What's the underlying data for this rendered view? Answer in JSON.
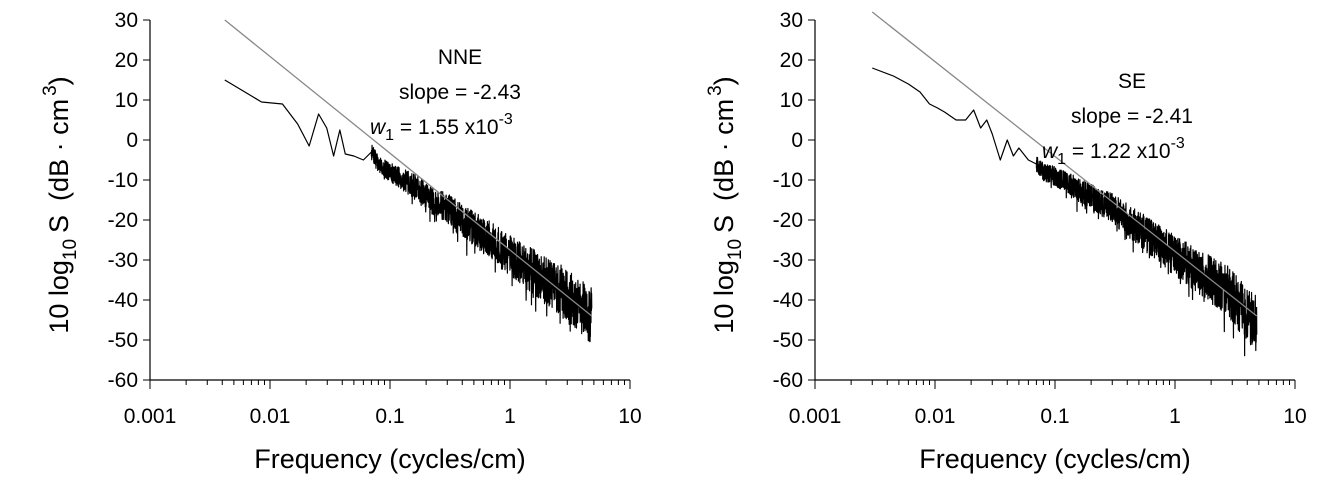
{
  "chart_data": [
    {
      "type": "line",
      "panel": "left",
      "xlabel": "Frequency (cycles/cm)",
      "ylabel_main": "10 log",
      "ylabel_sub": "10",
      "ylabel_hat": "S",
      "ylabel_unit": "(dB · cm",
      "ylabel_unit_sup": "3",
      "ylabel_close": ")",
      "xscale": "log",
      "xlim": [
        0.001,
        10
      ],
      "ylim": [
        -60,
        30
      ],
      "x_ticks": [
        "0.001",
        "0.01",
        "0.1",
        "1",
        "10"
      ],
      "y_ticks": [
        "30",
        "20",
        "10",
        "0",
        "-10",
        "-20",
        "-30",
        "-40",
        "-50",
        "-60"
      ],
      "annotation": {
        "site": "NNE",
        "slope_text": "slope = -2.43",
        "w_symbol": "w",
        "w_sub": "1",
        "w_value": " = 1.55 x10",
        "w_exp": "-3"
      },
      "fit_line": {
        "x": [
          0.0042,
          4.8
        ],
        "y": [
          30,
          -44
        ]
      },
      "spectrum": {
        "x": [
          0.0042,
          0.0085,
          0.0127,
          0.017,
          0.0212,
          0.0254,
          0.0297,
          0.0339,
          0.0382,
          0.0424,
          0.05,
          0.06,
          0.07,
          0.08,
          0.1,
          0.13,
          0.17,
          0.22,
          0.3,
          0.4,
          0.55,
          0.75,
          1.0,
          1.4,
          2.0,
          2.8,
          3.6,
          4.8
        ],
        "y": [
          15,
          9.5,
          9,
          4,
          -1.5,
          6.5,
          3,
          -4,
          2.5,
          -3.5,
          -4,
          -5,
          -3,
          -6,
          -8,
          -10,
          -12,
          -15,
          -17,
          -20,
          -23,
          -26,
          -29,
          -32,
          -35,
          -38,
          -41,
          -44
        ]
      }
    },
    {
      "type": "line",
      "panel": "right",
      "xlabel": "Frequency (cycles/cm)",
      "ylabel_main": "10 log",
      "ylabel_sub": "10",
      "ylabel_hat": "S",
      "ylabel_unit": "(dB · cm",
      "ylabel_unit_sup": "3",
      "ylabel_close": ")",
      "xscale": "log",
      "xlim": [
        0.001,
        10
      ],
      "ylim": [
        -60,
        30
      ],
      "x_ticks": [
        "0.001",
        "0.01",
        "0.1",
        "1",
        "10"
      ],
      "y_ticks": [
        "30",
        "20",
        "10",
        "0",
        "-10",
        "-20",
        "-30",
        "-40",
        "-50",
        "-60"
      ],
      "annotation": {
        "site": "SE",
        "slope_text": "slope = -2.41",
        "w_symbol": "w",
        "w_sub": "1",
        "w_value": " = 1.22 x10",
        "w_exp": "-3"
      },
      "fit_line": {
        "x": [
          0.003,
          4.8
        ],
        "y": [
          32,
          -44
        ]
      },
      "spectrum": {
        "x": [
          0.003,
          0.0045,
          0.006,
          0.0075,
          0.009,
          0.0105,
          0.012,
          0.015,
          0.018,
          0.021,
          0.024,
          0.027,
          0.03,
          0.035,
          0.04,
          0.045,
          0.05,
          0.06,
          0.07,
          0.08,
          0.1,
          0.13,
          0.17,
          0.22,
          0.3,
          0.4,
          0.55,
          0.75,
          1.0,
          1.4,
          2.0,
          2.8,
          3.6,
          4.8
        ],
        "y": [
          18,
          16,
          14,
          12,
          9,
          8,
          7,
          5,
          5,
          7.5,
          3,
          5,
          1.5,
          -5,
          0,
          -4,
          -2,
          -5,
          -6,
          -8,
          -9,
          -11,
          -13,
          -15,
          -17,
          -20,
          -23,
          -26,
          -29,
          -32,
          -35,
          -38,
          -42,
          -46
        ]
      }
    }
  ]
}
